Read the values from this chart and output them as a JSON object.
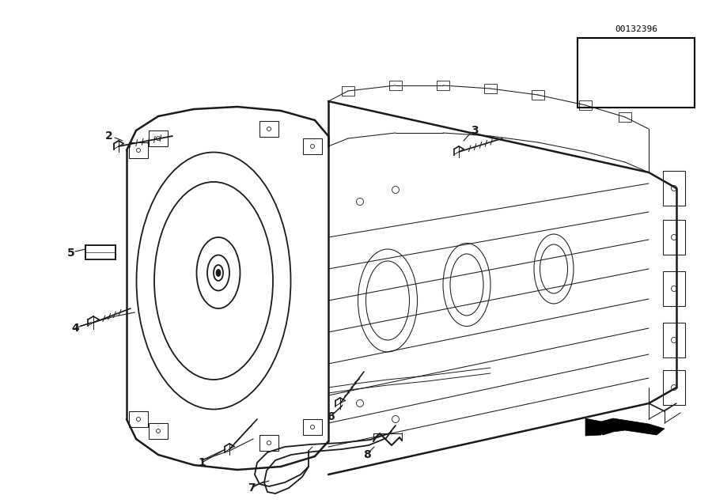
{
  "bg_color": "#ffffff",
  "line_color": "#1a1a1a",
  "diagram_code": "00132396",
  "label_fs": 10,
  "lw_main": 1.3,
  "lw_thin": 0.75,
  "lw_thick": 1.8
}
